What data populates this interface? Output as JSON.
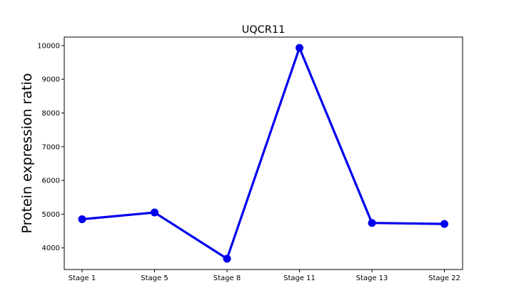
{
  "chart_data": {
    "type": "line",
    "title": "UQCR11",
    "xlabel": "",
    "ylabel": "Protein expression ratio",
    "categories": [
      "Stage 1",
      "Stage 5",
      "Stage 8",
      "Stage 11",
      "Stage 13",
      "Stage 22"
    ],
    "series": [
      {
        "values": [
          4850,
          5050,
          3680,
          9930,
          4740,
          4710
        ],
        "color": "#0000ee"
      }
    ],
    "ylim": [
      3360,
      10250
    ],
    "yticks": [
      4000,
      5000,
      6000,
      7000,
      8000,
      9000,
      10000
    ],
    "ytick_labels": [
      "4000",
      "5000",
      "6000",
      "7000",
      "8000",
      "9000",
      "10000"
    ],
    "grid": false,
    "legend": "none"
  }
}
